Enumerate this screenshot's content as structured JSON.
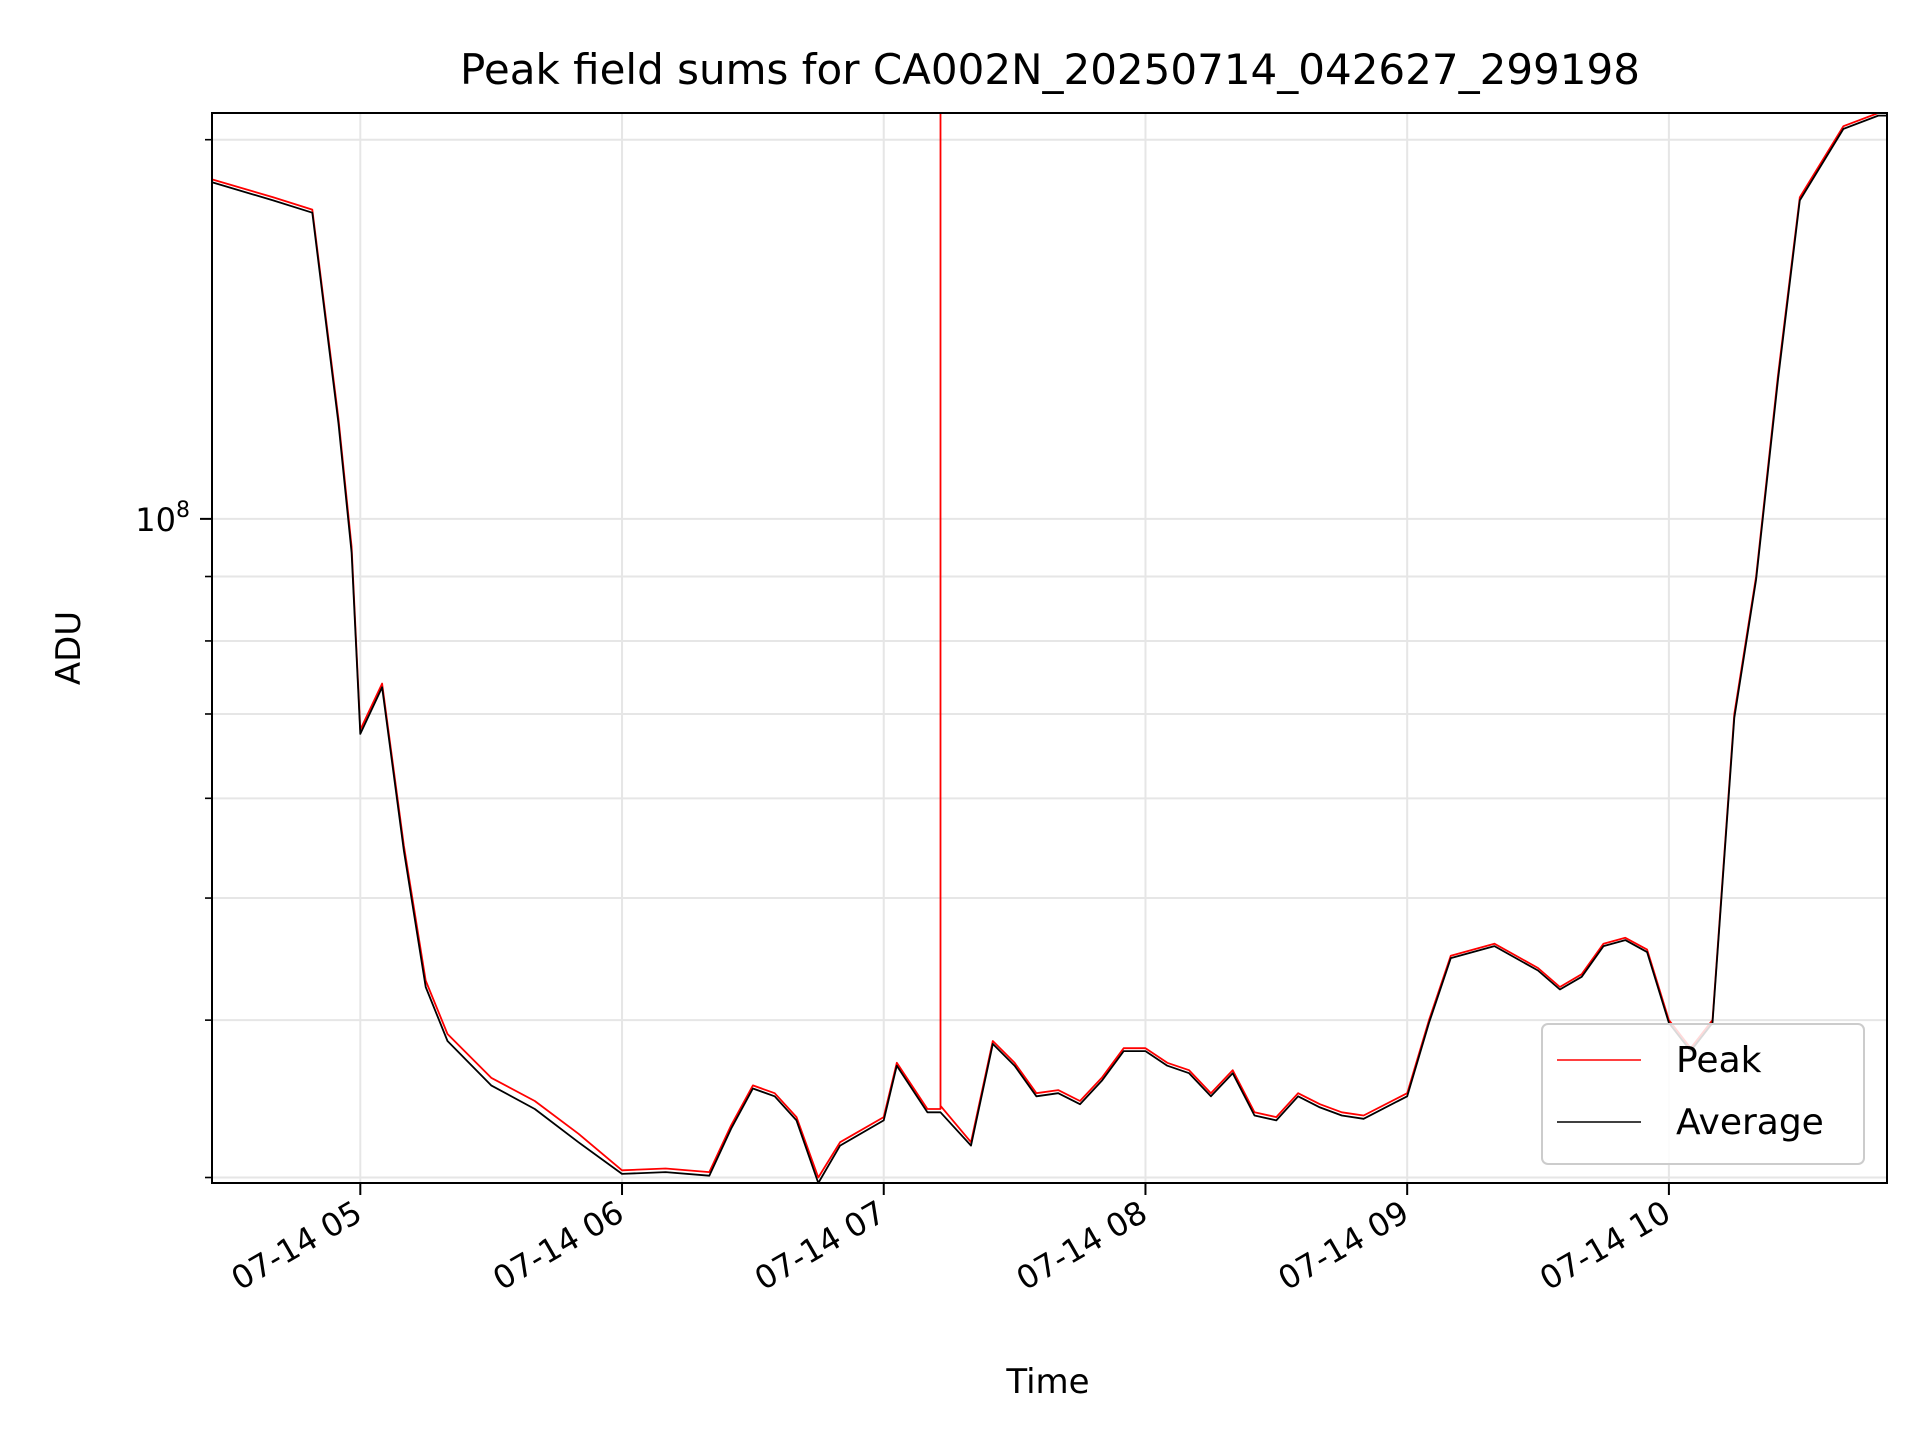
{
  "chart_data": {
    "type": "line",
    "title": "Peak field sums for CA002N_20250714_042627_299198",
    "xlabel": "Time",
    "ylabel": "ADU",
    "y_scale": "log",
    "grid": true,
    "legend_placement": "lower-right",
    "xlim": [
      "07-14 04:26",
      "07-14 10:50"
    ],
    "ylim": [
      29700000,
      210000000
    ],
    "x_tick_labels": [
      "07-14 05",
      "07-14 06",
      "07-14 07",
      "07-14 08",
      "07-14 09",
      "07-14 10"
    ],
    "y_tick_labels": [
      {
        "base": "10",
        "exp": "8"
      }
    ],
    "series": [
      {
        "name": "Peak",
        "color": "#ff0000",
        "x": [
          "07-14 04:26",
          "07-14 04:40",
          "07-14 04:49",
          "07-14 04:55",
          "07-14 04:58",
          "07-14 05:00",
          "07-14 05:05",
          "07-14 05:10",
          "07-14 05:15",
          "07-14 05:20",
          "07-14 05:30",
          "07-14 05:40",
          "07-14 05:50",
          "07-14 06:00",
          "07-14 06:10",
          "07-14 06:20",
          "07-14 06:25",
          "07-14 06:30",
          "07-14 06:35",
          "07-14 06:40",
          "07-14 06:45",
          "07-14 06:50",
          "07-14 07:00",
          "07-14 07:03",
          "07-14 07:10",
          "07-14 07:13",
          "07-14 07:13",
          "07-14 07:13",
          "07-14 07:20",
          "07-14 07:25",
          "07-14 07:30",
          "07-14 07:35",
          "07-14 07:40",
          "07-14 07:45",
          "07-14 07:50",
          "07-14 07:55",
          "07-14 08:00",
          "07-14 08:05",
          "07-14 08:10",
          "07-14 08:15",
          "07-14 08:20",
          "07-14 08:25",
          "07-14 08:30",
          "07-14 08:35",
          "07-14 08:40",
          "07-14 08:45",
          "07-14 08:50",
          "07-14 09:00",
          "07-14 09:05",
          "07-14 09:10",
          "07-14 09:20",
          "07-14 09:30",
          "07-14 09:35",
          "07-14 09:40",
          "07-14 09:45",
          "07-14 09:50",
          "07-14 09:55",
          "07-14 10:00",
          "07-14 10:05",
          "07-14 10:10",
          "07-14 10:15",
          "07-14 10:20",
          "07-14 10:25",
          "07-14 10:30",
          "07-14 10:40",
          "07-14 10:48",
          "07-14 10:50"
        ],
        "values": [
          186000000,
          180000000,
          176000000,
          120000000,
          95000000,
          68000000,
          74000000,
          55000000,
          43000000,
          39000000,
          36000000,
          34500000,
          32500000,
          30400000,
          30500000,
          30300000,
          33000000,
          35500000,
          35000000,
          33500000,
          30000000,
          32000000,
          33500000,
          37000000,
          34000000,
          34000000,
          210000000,
          34200000,
          32000000,
          38500000,
          37000000,
          35000000,
          35200000,
          34500000,
          36000000,
          38000000,
          38000000,
          37000000,
          36500000,
          35000000,
          36500000,
          33800000,
          33500000,
          35000000,
          34300000,
          33800000,
          33600000,
          35000000,
          40000000,
          45000000,
          46000000,
          44000000,
          42500000,
          43500000,
          46000000,
          46500000,
          45500000,
          40000000,
          38000000,
          40000000,
          70000000,
          90000000,
          130000000,
          180000000,
          205000000,
          210000000,
          210000000
        ]
      },
      {
        "name": "Average",
        "color": "#000000",
        "x": [
          "07-14 04:26",
          "07-14 04:40",
          "07-14 04:49",
          "07-14 04:55",
          "07-14 04:58",
          "07-14 05:00",
          "07-14 05:05",
          "07-14 05:10",
          "07-14 05:15",
          "07-14 05:20",
          "07-14 05:30",
          "07-14 05:40",
          "07-14 05:50",
          "07-14 06:00",
          "07-14 06:10",
          "07-14 06:20",
          "07-14 06:25",
          "07-14 06:30",
          "07-14 06:35",
          "07-14 06:40",
          "07-14 06:45",
          "07-14 06:50",
          "07-14 07:00",
          "07-14 07:03",
          "07-14 07:10",
          "07-14 07:13",
          "07-14 07:20",
          "07-14 07:25",
          "07-14 07:30",
          "07-14 07:35",
          "07-14 07:40",
          "07-14 07:45",
          "07-14 07:50",
          "07-14 07:55",
          "07-14 08:00",
          "07-14 08:05",
          "07-14 08:10",
          "07-14 08:15",
          "07-14 08:20",
          "07-14 08:25",
          "07-14 08:30",
          "07-14 08:35",
          "07-14 08:40",
          "07-14 08:45",
          "07-14 08:50",
          "07-14 09:00",
          "07-14 09:05",
          "07-14 09:10",
          "07-14 09:20",
          "07-14 09:30",
          "07-14 09:35",
          "07-14 09:40",
          "07-14 09:45",
          "07-14 09:50",
          "07-14 09:55",
          "07-14 10:00",
          "07-14 10:05",
          "07-14 10:10",
          "07-14 10:15",
          "07-14 10:20",
          "07-14 10:25",
          "07-14 10:30",
          "07-14 10:40",
          "07-14 10:48",
          "07-14 10:50"
        ],
        "values": [
          185000000,
          179000000,
          175000000,
          119000000,
          94000000,
          67500000,
          73500000,
          54500000,
          42500000,
          38500000,
          35500000,
          34000000,
          32000000,
          30200000,
          30300000,
          30100000,
          32800000,
          35300000,
          34800000,
          33300000,
          29700000,
          31800000,
          33300000,
          36800000,
          33800000,
          33800000,
          31800000,
          38300000,
          36800000,
          34800000,
          35000000,
          34300000,
          35800000,
          37800000,
          37800000,
          36800000,
          36300000,
          34800000,
          36300000,
          33600000,
          33300000,
          34800000,
          34100000,
          33600000,
          33400000,
          34800000,
          39800000,
          44800000,
          45800000,
          43800000,
          42300000,
          43300000,
          45800000,
          46300000,
          45300000,
          39800000,
          37800000,
          39800000,
          69500000,
          89500000,
          129000000,
          179000000,
          204000000,
          209000000,
          209000000
        ]
      }
    ]
  }
}
